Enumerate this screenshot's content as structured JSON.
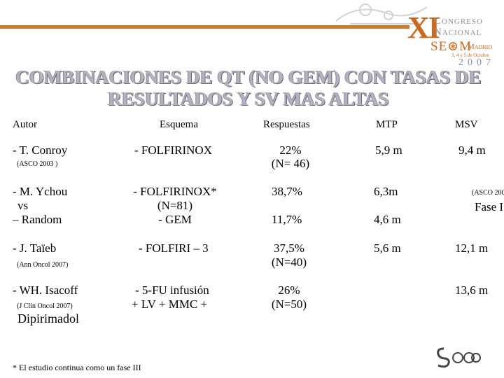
{
  "logo": {
    "roman": "XI",
    "line1": "Congreso",
    "line2": "Nacional",
    "org": "SE⊛M",
    "city": "Madrid",
    "dates": "3, 4 y 5 de Octubre",
    "year": "2007"
  },
  "title": {
    "line1": "COMBINACIONES DE QT (NO GEM) CON TASAS DE",
    "line2": "RESULTADOS Y SV MAS ALTAS"
  },
  "table": {
    "headers": {
      "autor": "Autor",
      "esquema": "Esquema",
      "respuestas": "Respuestas",
      "mtp": "MTP",
      "msv": "MSV"
    },
    "rows": [
      {
        "autor": "- T. Conroy",
        "autor_note": "(ASCO 2003 )",
        "esquema": "- FOLFIRINOX",
        "resp": "22%",
        "resp_n": "(N= 46)",
        "mtp": "5,9 m",
        "msv": "9,4 m"
      },
      {
        "autor_l1": "- M. Ychou",
        "autor_l2": "vs",
        "autor_l3": "– Random",
        "esq_l1": "- FOLFIRINOX*",
        "esq_l2": "(N=81)",
        "esq_l3": "- GEM",
        "resp_a": "38,7%",
        "resp_b": "11,7%",
        "mtp_a": "6,3m",
        "mtp_b": "4,6 m",
        "msv_note": "(ASCO 200",
        "msv_phase": "Fase I"
      },
      {
        "autor": "- J. Taïeb",
        "autor_note": "(Ann Oncol 2007)",
        "esquema": "- FOLFIRI – 3",
        "resp": "37,5%",
        "resp_n": "(N=40)",
        "mtp": "5,6 m",
        "msv": "12,1 m"
      },
      {
        "autor": "- WH. Isacoff",
        "autor_note": "(J Clin Oncol 2007)",
        "autor_extra": "Dipirimadol",
        "esq_l1": "- 5-FU infusión",
        "esq_l2": "+ LV + MMC +",
        "resp": "26%",
        "resp_n": "(N=50)",
        "msv": "13,6 m"
      }
    ]
  },
  "footnote": "* El estudio continua como un fase III",
  "bottom_logo": "SEOM",
  "colors": {
    "accent_orange": "#c96a1e",
    "logo_grey": "#8a9098",
    "title_grey": "#b3b3c0",
    "rule": "#c77d2c"
  }
}
